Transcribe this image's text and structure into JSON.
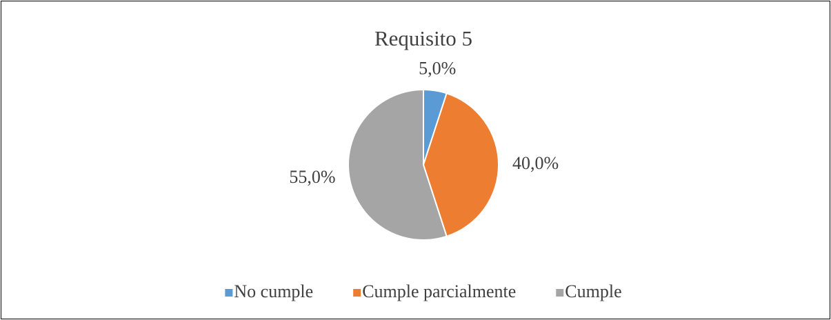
{
  "chart_data": {
    "type": "pie",
    "title": "Requisito 5",
    "categories": [
      "No cumple",
      "Cumple parcialmente",
      "Cumple"
    ],
    "values": [
      5,
      40,
      55
    ],
    "value_labels": [
      "5,0%",
      "40,0%",
      "55,0%"
    ],
    "colors": [
      "#5b9bd5",
      "#ed7d31",
      "#a5a5a5"
    ],
    "legend": "bottom"
  }
}
